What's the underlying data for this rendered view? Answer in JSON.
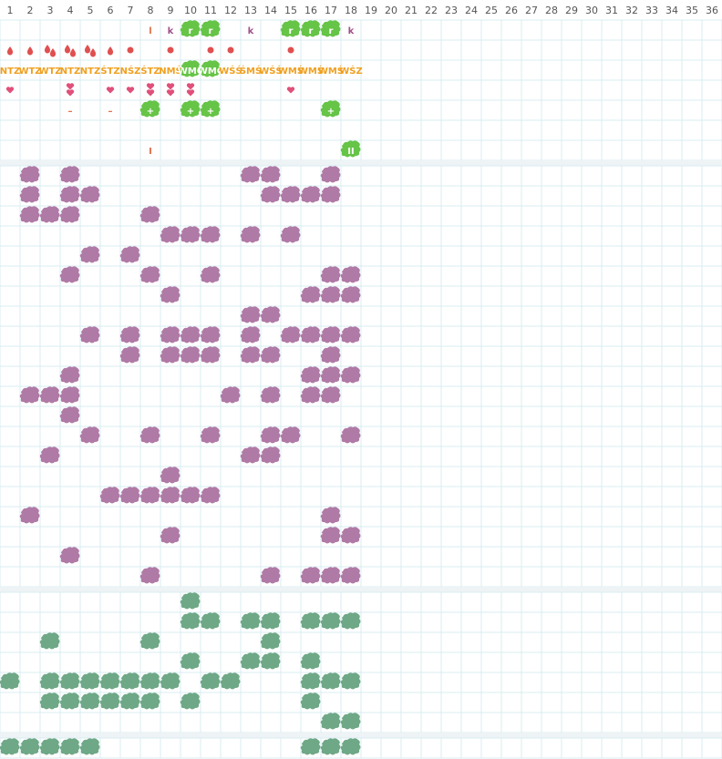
{
  "header": {
    "columns": [
      1,
      2,
      3,
      4,
      5,
      6,
      7,
      8,
      9,
      10,
      11,
      12,
      13,
      14,
      15,
      16,
      17,
      18,
      19,
      20,
      21,
      22,
      23,
      24,
      25,
      26,
      27,
      28,
      29,
      30,
      31,
      32,
      33,
      34,
      35,
      36
    ]
  },
  "sections": [
    {
      "kind": "symbols",
      "rows": [
        [
          {
            "col": 8,
            "text": "l",
            "color": "#e0704a"
          },
          {
            "col": 9,
            "text": "k",
            "color": "#a0508a"
          },
          {
            "col": 10,
            "text": "r",
            "badge": true
          },
          {
            "col": 11,
            "text": "r",
            "badge": true
          },
          {
            "col": 13,
            "text": "k",
            "color": "#a0508a"
          },
          {
            "col": 15,
            "text": "r",
            "badge": true
          },
          {
            "col": 16,
            "text": "r",
            "badge": true
          },
          {
            "col": 17,
            "text": "r",
            "badge": true
          },
          {
            "col": 18,
            "text": "k",
            "color": "#a0508a"
          }
        ],
        [
          {
            "col": 1,
            "symbol": "drop"
          },
          {
            "col": 2,
            "symbol": "drop"
          },
          {
            "col": 3,
            "symbol": "drop2"
          },
          {
            "col": 4,
            "symbol": "drop2"
          },
          {
            "col": 5,
            "symbol": "drop2"
          },
          {
            "col": 6,
            "symbol": "drop"
          },
          {
            "col": 7,
            "symbol": "dot"
          },
          {
            "col": 9,
            "symbol": "dot"
          },
          {
            "col": 11,
            "symbol": "dot"
          },
          {
            "col": 12,
            "symbol": "dot"
          },
          {
            "col": 15,
            "symbol": "dot"
          }
        ],
        [
          {
            "col": 1,
            "text": "NTZ",
            "color": "#f0a020"
          },
          {
            "col": 2,
            "text": "WTZ",
            "color": "#f0a020"
          },
          {
            "col": 3,
            "text": "WTZ",
            "color": "#f0a020"
          },
          {
            "col": 4,
            "text": "NTZ",
            "color": "#f0a020"
          },
          {
            "col": 5,
            "text": "NTZ",
            "color": "#f0a020"
          },
          {
            "col": 6,
            "text": "ŚTZ",
            "color": "#f0a020"
          },
          {
            "col": 7,
            "text": "NŚZ",
            "color": "#f0a020"
          },
          {
            "col": 8,
            "text": "ŚTZ",
            "color": "#f0a020"
          },
          {
            "col": 9,
            "text": "NMŚ",
            "color": "#f0a020"
          },
          {
            "col": 10,
            "text": "WMC",
            "badge": true
          },
          {
            "col": 11,
            "text": "WMC",
            "badge": true
          },
          {
            "col": 12,
            "text": "WŚŚ",
            "color": "#f0a020"
          },
          {
            "col": 13,
            "text": "ŚMŚ",
            "color": "#f0a020"
          },
          {
            "col": 14,
            "text": "WŚŚ",
            "color": "#f0a020"
          },
          {
            "col": 15,
            "text": "WMŚ",
            "color": "#f0a020"
          },
          {
            "col": 16,
            "text": "WMŚ",
            "color": "#f0a020"
          },
          {
            "col": 17,
            "text": "WMŚ",
            "color": "#f0a020"
          },
          {
            "col": 18,
            "text": "WŚZ",
            "color": "#f0a020"
          }
        ],
        [
          {
            "col": 1,
            "symbol": "heart"
          },
          {
            "col": 4,
            "symbol": "heart2"
          },
          {
            "col": 6,
            "symbol": "heart"
          },
          {
            "col": 7,
            "symbol": "heart"
          },
          {
            "col": 8,
            "symbol": "heart2"
          },
          {
            "col": 9,
            "symbol": "heart2"
          },
          {
            "col": 10,
            "symbol": "heart2"
          },
          {
            "col": 15,
            "symbol": "heart"
          }
        ],
        [
          {
            "col": 4,
            "text": "–",
            "color": "#e0704a"
          },
          {
            "col": 6,
            "text": "–",
            "color": "#e0704a"
          },
          {
            "col": 8,
            "text": "+",
            "badge": true
          },
          {
            "col": 10,
            "text": "+",
            "badge": true
          },
          {
            "col": 11,
            "text": "+",
            "badge": true
          },
          {
            "col": 17,
            "text": "+",
            "badge": true
          }
        ],
        [],
        [
          {
            "col": 8,
            "text": "I",
            "color": "#e0704a"
          },
          {
            "col": 18,
            "text": "II",
            "badge": true
          }
        ]
      ]
    },
    {
      "kind": "blobs",
      "color": "#b07aa6",
      "rows": [
        [
          2,
          4,
          13,
          14,
          17
        ],
        [
          2,
          4,
          5,
          14,
          15,
          16,
          17
        ],
        [
          2,
          3,
          4,
          8
        ],
        [
          9,
          10,
          11,
          13,
          15
        ],
        [
          5,
          7
        ],
        [
          4,
          8,
          11,
          17,
          18
        ],
        [
          9,
          16,
          17,
          18
        ],
        [
          13,
          14
        ],
        [
          5,
          7,
          9,
          10,
          11,
          13,
          15,
          16,
          17,
          18
        ],
        [
          7,
          9,
          10,
          11,
          13,
          14,
          17
        ],
        [
          4,
          16,
          17,
          18
        ],
        [
          2,
          3,
          4,
          12,
          14,
          16,
          17
        ],
        [
          4
        ],
        [
          5,
          8,
          11,
          14,
          15,
          18
        ],
        [
          3,
          13,
          14
        ],
        [
          9
        ],
        [
          6,
          7,
          8,
          9,
          10,
          11
        ],
        [
          2,
          17
        ],
        [
          9,
          17,
          18
        ],
        [
          4
        ],
        [
          8,
          14,
          16,
          17,
          18
        ]
      ]
    },
    {
      "kind": "blobs",
      "color": "#6fa886",
      "rows": [
        [
          10
        ],
        [
          10,
          11,
          13,
          14,
          16,
          17,
          18
        ],
        [
          3,
          8,
          14
        ],
        [
          10,
          13,
          14,
          16
        ],
        [
          1,
          3,
          4,
          5,
          6,
          7,
          8,
          9,
          11,
          12,
          16,
          17,
          18
        ],
        [
          3,
          4,
          5,
          6,
          7,
          8,
          10,
          16
        ],
        [
          17,
          18
        ]
      ]
    },
    {
      "kind": "blobs",
      "color": "#6fa886",
      "rows": [
        [
          1,
          2,
          3,
          4,
          5,
          16,
          17,
          18
        ]
      ]
    }
  ]
}
